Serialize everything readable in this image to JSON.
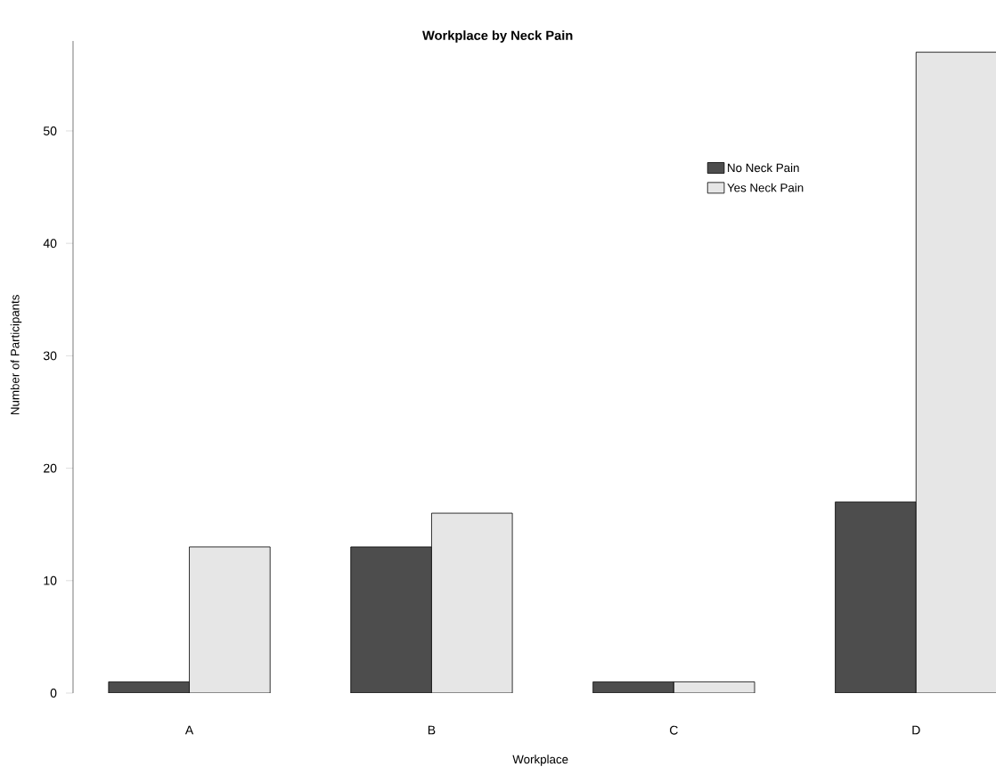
{
  "chart_data": {
    "type": "bar",
    "title": "Workplace by Neck Pain",
    "xlabel": "Workplace",
    "ylabel": "Number of Participants",
    "categories": [
      "A",
      "B",
      "C",
      "D"
    ],
    "series": [
      {
        "name": "No Neck Pain",
        "color": "#4d4d4d",
        "values": [
          1,
          13,
          1,
          17
        ]
      },
      {
        "name": "Yes Neck Pain",
        "color": "#e6e6e6",
        "values": [
          13,
          16,
          1,
          57
        ]
      }
    ],
    "ylim": [
      0,
      58
    ],
    "yticks": [
      0,
      10,
      20,
      30,
      40,
      50
    ],
    "legend": "top right"
  }
}
